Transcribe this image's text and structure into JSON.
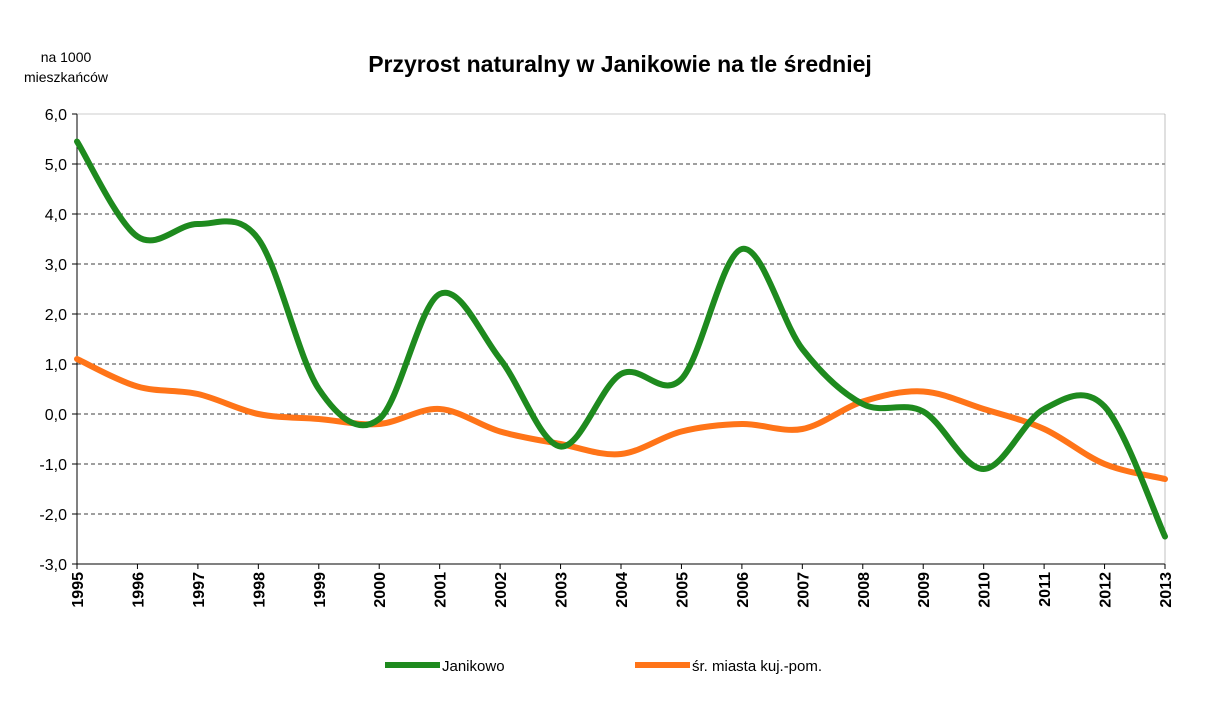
{
  "chart_data": {
    "type": "line",
    "title": "Przyrost naturalny w Janikowie na tle średniej",
    "ylabel": [
      "na 1000",
      "mieszkańców"
    ],
    "categories": [
      "1995",
      "1996",
      "1997",
      "1998",
      "1999",
      "2000",
      "2001",
      "2002",
      "2003",
      "2004",
      "2005",
      "2006",
      "2007",
      "2008",
      "2009",
      "2010",
      "2011",
      "2012",
      "2013"
    ],
    "series": [
      {
        "name": "Janikowo",
        "color": "#1e8a1e",
        "values": [
          5.45,
          3.55,
          3.8,
          3.5,
          0.5,
          -0.1,
          2.4,
          1.1,
          -0.65,
          0.8,
          0.7,
          3.3,
          1.3,
          0.2,
          0.05,
          -1.1,
          0.1,
          0.15,
          -2.45
        ]
      },
      {
        "name": "śr. miasta kuj.-pom.",
        "color": "#ff7418",
        "values": [
          1.1,
          0.55,
          0.4,
          0.0,
          -0.1,
          -0.2,
          0.1,
          -0.35,
          -0.6,
          -0.8,
          -0.35,
          -0.2,
          -0.3,
          0.25,
          0.45,
          0.1,
          -0.3,
          -1.0,
          -1.3
        ]
      }
    ],
    "ylim": [
      -3,
      6
    ],
    "yticks": [
      {
        "value": 6,
        "label": "6,0"
      },
      {
        "value": 5,
        "label": "5,0"
      },
      {
        "value": 4,
        "label": "4,0"
      },
      {
        "value": 3,
        "label": "3,0"
      },
      {
        "value": 2,
        "label": "2,0"
      },
      {
        "value": 1,
        "label": "1,0"
      },
      {
        "value": 0,
        "label": "0,0"
      },
      {
        "value": -1,
        "label": "-1,0"
      },
      {
        "value": -2,
        "label": "-2,0"
      },
      {
        "value": -3,
        "label": "-3,0"
      }
    ],
    "grid": true,
    "legend": "bottom"
  }
}
